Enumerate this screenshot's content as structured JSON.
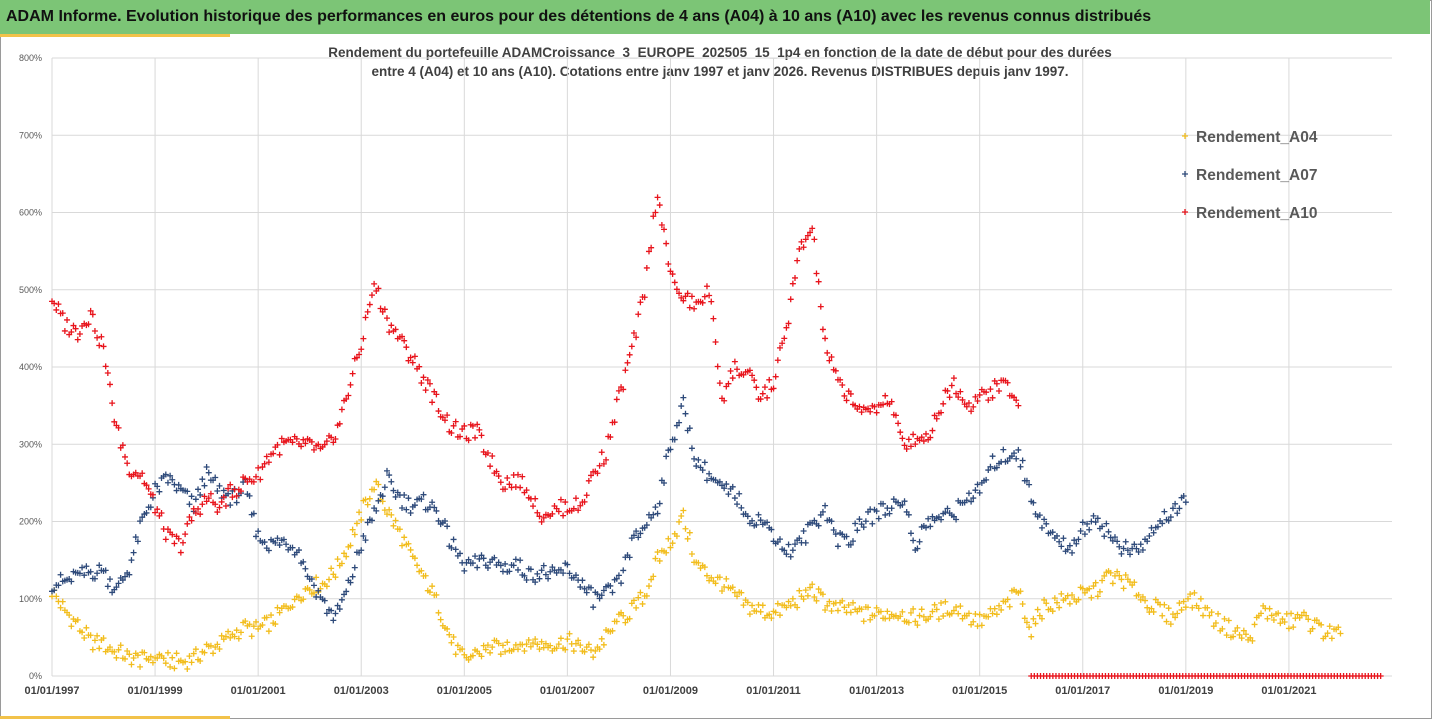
{
  "banner": {
    "title": "ADAM Informe. Evolution historique des performances en euros pour des détentions de 4 ans (A04) à 10 ans (A10) avec les revenus connus distribués"
  },
  "colors": {
    "banner_bg": "#7cc576",
    "accent": "#f2c24a",
    "A04": "#f2bd1d",
    "A07": "#2e4a7a",
    "A10": "#e8141c",
    "grid": "#d9d9d9"
  },
  "chart_data": {
    "type": "scatter",
    "title": "Rendement du portefeuille ADAMCroissance_3_EUROPE_202505_15_1p4  en fonction de la date de début pour des durées",
    "subtitle": "entre 4 (A04) et 10 ans (A10). Cotations entre janv 1997 et janv 2026. Revenus DISTRIBUES depuis janv 1997.",
    "xlabel": "",
    "ylabel": "",
    "xlim": [
      "1997-01-01",
      "2023-01-01"
    ],
    "ylim": [
      0,
      8
    ],
    "y_ticks": [
      "0%",
      "100%",
      "200%",
      "300%",
      "400%",
      "500%",
      "600%",
      "700%",
      "800%"
    ],
    "x_ticks": [
      "01/01/1997",
      "01/01/1999",
      "01/01/2001",
      "01/01/2003",
      "01/01/2005",
      "01/01/2007",
      "01/01/2009",
      "01/01/2011",
      "01/01/2013",
      "01/01/2015",
      "01/01/2017",
      "01/01/2019",
      "01/01/2021"
    ],
    "x_tick_years": [
      1997,
      1999,
      2001,
      2003,
      2005,
      2007,
      2009,
      2011,
      2013,
      2015,
      2017,
      2019,
      2021
    ],
    "grid": true,
    "legend_position": "right",
    "marker": "+",
    "series": [
      {
        "name": "Rendement_A04",
        "color": "#f2bd1d",
        "x": [
          1997.0,
          1997.25,
          1997.5,
          1997.75,
          1998.0,
          1998.25,
          1998.5,
          1998.75,
          1999.0,
          1999.25,
          1999.5,
          1999.75,
          2000.0,
          2000.25,
          2000.5,
          2000.75,
          2001.0,
          2001.25,
          2001.5,
          2001.75,
          2002.0,
          2002.25,
          2002.5,
          2002.75,
          2003.0,
          2003.25,
          2003.5,
          2003.75,
          2004.0,
          2004.25,
          2004.5,
          2004.75,
          2005.0,
          2005.25,
          2005.5,
          2005.75,
          2006.0,
          2006.25,
          2006.5,
          2006.75,
          2007.0,
          2007.25,
          2007.5,
          2007.75,
          2008.0,
          2008.25,
          2008.5,
          2008.75,
          2009.0,
          2009.25,
          2009.5,
          2009.75,
          2010.0,
          2010.25,
          2010.5,
          2010.75,
          2011.0,
          2011.25,
          2011.5,
          2011.75,
          2012.0,
          2012.25,
          2012.5,
          2012.75,
          2013.0,
          2013.25,
          2013.5,
          2013.75,
          2014.0,
          2014.25,
          2014.5,
          2014.75,
          2015.0,
          2015.25,
          2015.5,
          2015.75,
          2016.0,
          2016.25,
          2016.5,
          2016.75,
          2017.0,
          2017.25,
          2017.5,
          2017.75,
          2018.0,
          2018.25,
          2018.5,
          2018.75,
          2019.0,
          2019.25,
          2019.5,
          2019.75,
          2020.0,
          2020.25,
          2020.5,
          2020.75,
          2021.0,
          2021.25,
          2021.5,
          2021.75,
          2022.0
        ],
        "y": [
          1.1,
          0.85,
          0.65,
          0.45,
          0.4,
          0.32,
          0.25,
          0.2,
          0.28,
          0.2,
          0.18,
          0.22,
          0.35,
          0.4,
          0.55,
          0.62,
          0.6,
          0.7,
          0.85,
          1.05,
          1.15,
          1.2,
          1.35,
          1.7,
          2.1,
          2.5,
          2.15,
          1.85,
          1.5,
          1.25,
          0.9,
          0.45,
          0.2,
          0.3,
          0.35,
          0.38,
          0.4,
          0.45,
          0.42,
          0.4,
          0.45,
          0.38,
          0.3,
          0.5,
          0.7,
          0.85,
          1.05,
          1.5,
          1.75,
          2.05,
          1.45,
          1.3,
          1.2,
          1.05,
          0.9,
          0.85,
          0.8,
          0.9,
          1.0,
          1.1,
          0.95,
          0.88,
          0.85,
          0.8,
          0.8,
          0.82,
          0.8,
          0.75,
          0.8,
          0.85,
          0.9,
          0.78,
          0.7,
          0.8,
          0.9,
          1.1,
          0.6,
          0.9,
          0.95,
          1.0,
          1.05,
          1.1,
          1.3,
          1.25,
          1.15,
          0.95,
          0.85,
          0.75,
          1.0,
          0.95,
          0.75,
          0.65,
          0.55,
          0.5,
          0.85,
          0.75,
          0.7,
          0.75,
          0.65,
          0.55,
          0.55
        ]
      },
      {
        "name": "Rendement_A07",
        "color": "#2e4a7a",
        "x": [
          1997.0,
          1997.25,
          1997.5,
          1997.75,
          1998.0,
          1998.25,
          1998.5,
          1998.75,
          1999.0,
          1999.25,
          1999.5,
          1999.75,
          2000.0,
          2000.25,
          2000.5,
          2000.75,
          2001.0,
          2001.25,
          2001.5,
          2001.75,
          2002.0,
          2002.25,
          2002.5,
          2002.75,
          2003.0,
          2003.25,
          2003.5,
          2003.75,
          2004.0,
          2004.25,
          2004.5,
          2004.75,
          2005.0,
          2005.25,
          2005.5,
          2005.75,
          2006.0,
          2006.25,
          2006.5,
          2006.75,
          2007.0,
          2007.25,
          2007.5,
          2007.75,
          2008.0,
          2008.25,
          2008.5,
          2008.75,
          2009.0,
          2009.25,
          2009.5,
          2009.75,
          2010.0,
          2010.25,
          2010.5,
          2010.75,
          2011.0,
          2011.25,
          2011.5,
          2011.75,
          2012.0,
          2012.25,
          2012.5,
          2012.75,
          2013.0,
          2013.25,
          2013.5,
          2013.75,
          2014.0,
          2014.25,
          2014.5,
          2014.75,
          2015.0,
          2015.25,
          2015.5,
          2015.75,
          2016.0,
          2016.25,
          2016.5,
          2016.75,
          2017.0,
          2017.25,
          2017.5,
          2017.75,
          2018.0,
          2018.25,
          2018.5,
          2018.75,
          2019.0
        ],
        "y": [
          1.2,
          1.22,
          1.28,
          1.35,
          1.35,
          1.1,
          1.4,
          2.0,
          2.4,
          2.55,
          2.4,
          2.2,
          2.6,
          2.4,
          2.3,
          2.45,
          1.8,
          1.7,
          1.75,
          1.65,
          1.3,
          0.95,
          0.75,
          1.15,
          1.7,
          2.1,
          2.55,
          2.3,
          2.2,
          2.25,
          2.1,
          1.7,
          1.45,
          1.45,
          1.5,
          1.4,
          1.45,
          1.3,
          1.35,
          1.3,
          1.4,
          1.2,
          1.0,
          1.05,
          1.2,
          1.7,
          1.95,
          2.2,
          3.0,
          3.5,
          2.8,
          2.6,
          2.4,
          2.35,
          2.1,
          2.0,
          1.85,
          1.6,
          1.7,
          1.95,
          2.15,
          1.75,
          1.8,
          2.0,
          2.1,
          2.2,
          2.3,
          1.7,
          2.0,
          2.05,
          2.1,
          2.3,
          2.4,
          2.75,
          2.85,
          2.9,
          2.3,
          1.95,
          1.75,
          1.65,
          1.9,
          2.05,
          1.85,
          1.65,
          1.6,
          1.75,
          2.05,
          2.1,
          2.25
        ]
      },
      {
        "name": "Rendement_A10",
        "color": "#e8141c",
        "x": [
          1997.0,
          1997.25,
          1997.5,
          1997.75,
          1998.0,
          1998.25,
          1998.5,
          1998.75,
          1999.0,
          1999.25,
          1999.5,
          1999.75,
          2000.0,
          2000.25,
          2000.5,
          2000.75,
          2001.0,
          2001.25,
          2001.5,
          2001.75,
          2002.0,
          2002.25,
          2002.5,
          2002.75,
          2003.0,
          2003.25,
          2003.5,
          2003.75,
          2004.0,
          2004.25,
          2004.5,
          2004.75,
          2005.0,
          2005.25,
          2005.5,
          2005.75,
          2006.0,
          2006.25,
          2006.5,
          2006.75,
          2007.0,
          2007.25,
          2007.5,
          2007.75,
          2008.0,
          2008.25,
          2008.5,
          2008.75,
          2009.0,
          2009.25,
          2009.5,
          2009.75,
          2010.0,
          2010.25,
          2010.5,
          2010.75,
          2011.0,
          2011.25,
          2011.5,
          2011.75,
          2012.0,
          2012.25,
          2012.5,
          2012.75,
          2013.0,
          2013.25,
          2013.5,
          2013.75,
          2014.0,
          2014.25,
          2014.5,
          2014.75,
          2015.0,
          2015.25,
          2015.5,
          2015.75
        ],
        "y": [
          4.9,
          4.55,
          4.45,
          4.7,
          4.2,
          3.2,
          2.7,
          2.6,
          2.2,
          1.8,
          1.7,
          2.1,
          2.3,
          2.2,
          2.4,
          2.5,
          2.6,
          2.9,
          3.0,
          3.0,
          3.0,
          2.9,
          3.1,
          3.7,
          4.3,
          5.1,
          4.6,
          4.35,
          4.1,
          3.8,
          3.5,
          3.2,
          3.15,
          3.15,
          2.8,
          2.5,
          2.55,
          2.4,
          2.1,
          2.15,
          2.2,
          2.2,
          2.6,
          2.9,
          3.6,
          4.2,
          5.0,
          6.3,
          5.2,
          4.9,
          4.8,
          5.0,
          3.6,
          4.0,
          3.9,
          3.6,
          3.8,
          4.5,
          5.5,
          5.8,
          4.3,
          3.8,
          3.6,
          3.4,
          3.5,
          3.6,
          3.0,
          3.1,
          3.1,
          3.5,
          3.8,
          3.5,
          3.6,
          3.7,
          3.8,
          3.5
        ]
      }
    ]
  }
}
